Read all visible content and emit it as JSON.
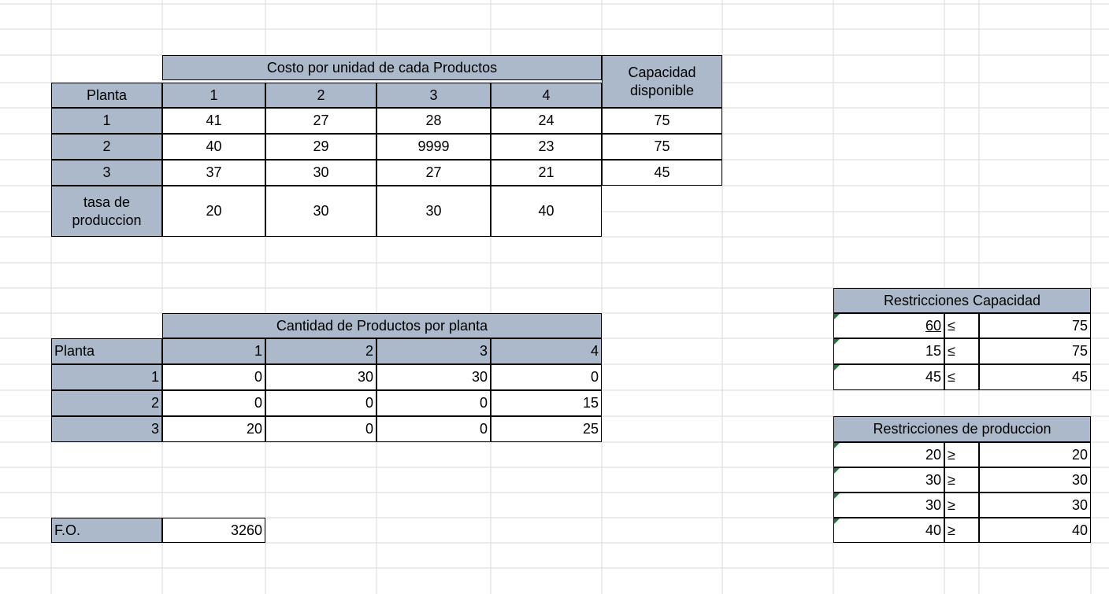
{
  "colors": {
    "header_fill": "#acb9ca",
    "gridline": "#dadada",
    "comment_marker": "#1e7a3c"
  },
  "cost_table": {
    "title": "Costo por unidad de cada Productos",
    "row_header": "Planta",
    "products": [
      "1",
      "2",
      "3",
      "4"
    ],
    "capacity_header": "Capacidad disponible",
    "plants": [
      {
        "label": "1",
        "costs": [
          "41",
          "27",
          "28",
          "24"
        ],
        "capacity": "75"
      },
      {
        "label": "2",
        "costs": [
          "40",
          "29",
          "9999",
          "23"
        ],
        "capacity": "75"
      },
      {
        "label": "3",
        "costs": [
          "37",
          "30",
          "27",
          "21"
        ],
        "capacity": "45"
      }
    ],
    "rate_label": "tasa de produccion",
    "rates": [
      "20",
      "30",
      "30",
      "40"
    ]
  },
  "quantity_table": {
    "title": "Cantidad de Productos por planta",
    "row_header": "Planta",
    "products": [
      "1",
      "2",
      "3",
      "4"
    ],
    "plants": [
      {
        "label": "1",
        "values": [
          "0",
          "30",
          "30",
          "0"
        ]
      },
      {
        "label": "2",
        "values": [
          "0",
          "0",
          "0",
          "15"
        ]
      },
      {
        "label": "3",
        "values": [
          "20",
          "0",
          "0",
          "25"
        ]
      }
    ]
  },
  "objective": {
    "label": "F.O.",
    "value": "3260"
  },
  "capacity_constraints": {
    "title": "Restricciones Capacidad",
    "rows": [
      {
        "lhs": "60",
        "op": "≤",
        "rhs": "75"
      },
      {
        "lhs": "15",
        "op": "≤",
        "rhs": "75"
      },
      {
        "lhs": "45",
        "op": "≤",
        "rhs": "45"
      }
    ]
  },
  "production_constraints": {
    "title": "Restricciones de produccion",
    "rows": [
      {
        "lhs": "20",
        "op": "≥",
        "rhs": "20"
      },
      {
        "lhs": "30",
        "op": "≥",
        "rhs": "30"
      },
      {
        "lhs": "30",
        "op": "≥",
        "rhs": "30"
      },
      {
        "lhs": "40",
        "op": "≥",
        "rhs": "40"
      }
    ]
  }
}
